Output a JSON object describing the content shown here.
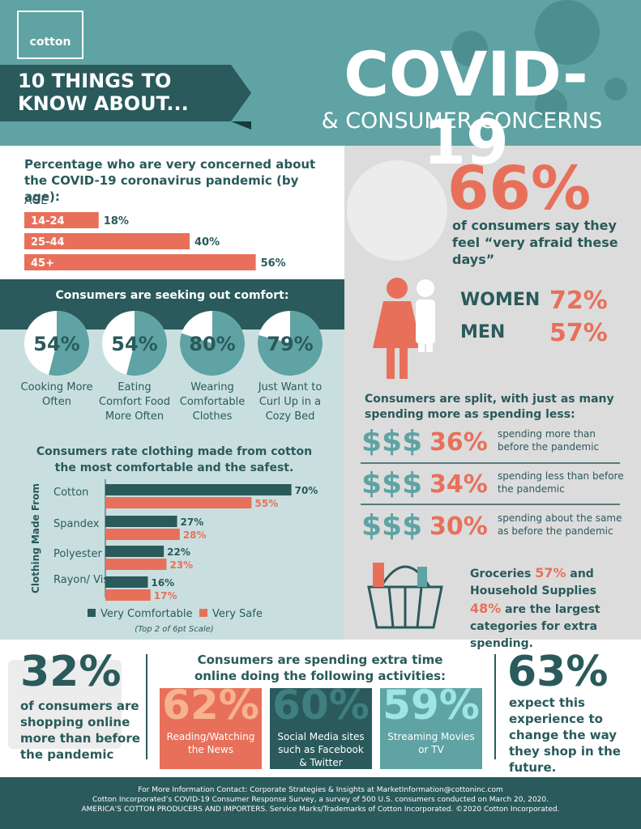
{
  "header": {
    "logo": "cotton",
    "banner": "10 THINGS TO KNOW ABOUT...",
    "title": "COVID-19",
    "subtitle": "& CONSUMER CONCERNS"
  },
  "age_chart": {
    "type": "bar",
    "title": "Percentage who are very concerned about the COVID-19 coronavirus pandemic (by age):",
    "axis_label": "AGE",
    "categories": [
      "14-24",
      "25-44",
      "45+"
    ],
    "values": [
      18,
      40,
      56
    ],
    "value_labels": [
      "18%",
      "40%",
      "56%"
    ],
    "color": "#e8705a"
  },
  "comfort": {
    "type": "pie",
    "title": "Consumers are seeking out comfort:",
    "color": "#5fa3a4",
    "items": [
      {
        "value": 54,
        "value_label": "54%",
        "caption": "Cooking More Often"
      },
      {
        "value": 54,
        "value_label": "54%",
        "caption": "Eating Comfort Food More Often"
      },
      {
        "value": 80,
        "value_label": "80%",
        "caption": "Wearing Comfortable Clothes"
      },
      {
        "value": 79,
        "value_label": "79%",
        "caption": "Just Want to Curl Up in a Cozy Bed"
      }
    ]
  },
  "cotton_chart": {
    "type": "bar",
    "title": "Consumers rate clothing made from cotton the most comfortable and the safest.",
    "y_label": "Clothing Made From",
    "categories": [
      "Cotton",
      "Spandex",
      "Polyester",
      "Rayon/ Viscose"
    ],
    "series": [
      {
        "name": "Very Comfortable",
        "color": "#2a5a5b",
        "values": [
          70,
          27,
          22,
          16
        ],
        "value_labels": [
          "70%",
          "27%",
          "22%",
          "16%"
        ]
      },
      {
        "name": "Very Safe",
        "color": "#e8705a",
        "values": [
          55,
          28,
          23,
          17
        ],
        "value_labels": [
          "55%",
          "28%",
          "23%",
          "17%"
        ]
      }
    ],
    "note": "(Top 2 of 6pt Scale)"
  },
  "afraid": {
    "value": "66%",
    "text": "of consumers say they feel “very afraid these days”",
    "groups": [
      {
        "label": "WOMEN",
        "value": "72%"
      },
      {
        "label": "MEN",
        "value": "57%"
      }
    ]
  },
  "spending": {
    "title": "Consumers are split, with just as many spending more as spending less:",
    "rows": [
      {
        "icon": "$$$",
        "value": "36%",
        "text": "spending more than before the pandemic"
      },
      {
        "icon": "$$$",
        "value": "34%",
        "text": "spending less than before the pandemic"
      },
      {
        "icon": "$$$",
        "value": "30%",
        "text": "spending about the same as before the pandemic"
      }
    ]
  },
  "groceries": {
    "parts": [
      "Groceries",
      "57%",
      "and",
      "Household Supplies",
      "48%",
      "are the largest categories for extra spending."
    ]
  },
  "shopping_online": {
    "value": "32%",
    "text": "of consumers are shopping online more than before the pandemic"
  },
  "online": {
    "title": "Consumers are spending extra time online doing the following activities:",
    "activities": [
      {
        "value": "62%",
        "label": "Reading/Watching the News"
      },
      {
        "value": "60%",
        "label": "Social Media sites such as Facebook & Twitter"
      },
      {
        "value": "59%",
        "label": "Streaming Movies or TV"
      }
    ]
  },
  "expect": {
    "value": "63%",
    "text": "expect this experience to change the way they shop in the future."
  },
  "footer": {
    "lines": [
      "For More Information Contact: Corporate Strategies & Insights at MarketInformation@cottoninc.com",
      "Cotton Incorporated’s COVID-19 Consumer Response Survey, a survey of 500 U.S. consumers conducted on March 20, 2020.",
      "AMERICA’S COTTON PRODUCERS AND IMPORTERS. Service Marks/Trademarks of Cotton Incorporated. ©2020 Cotton Incorporated."
    ]
  }
}
